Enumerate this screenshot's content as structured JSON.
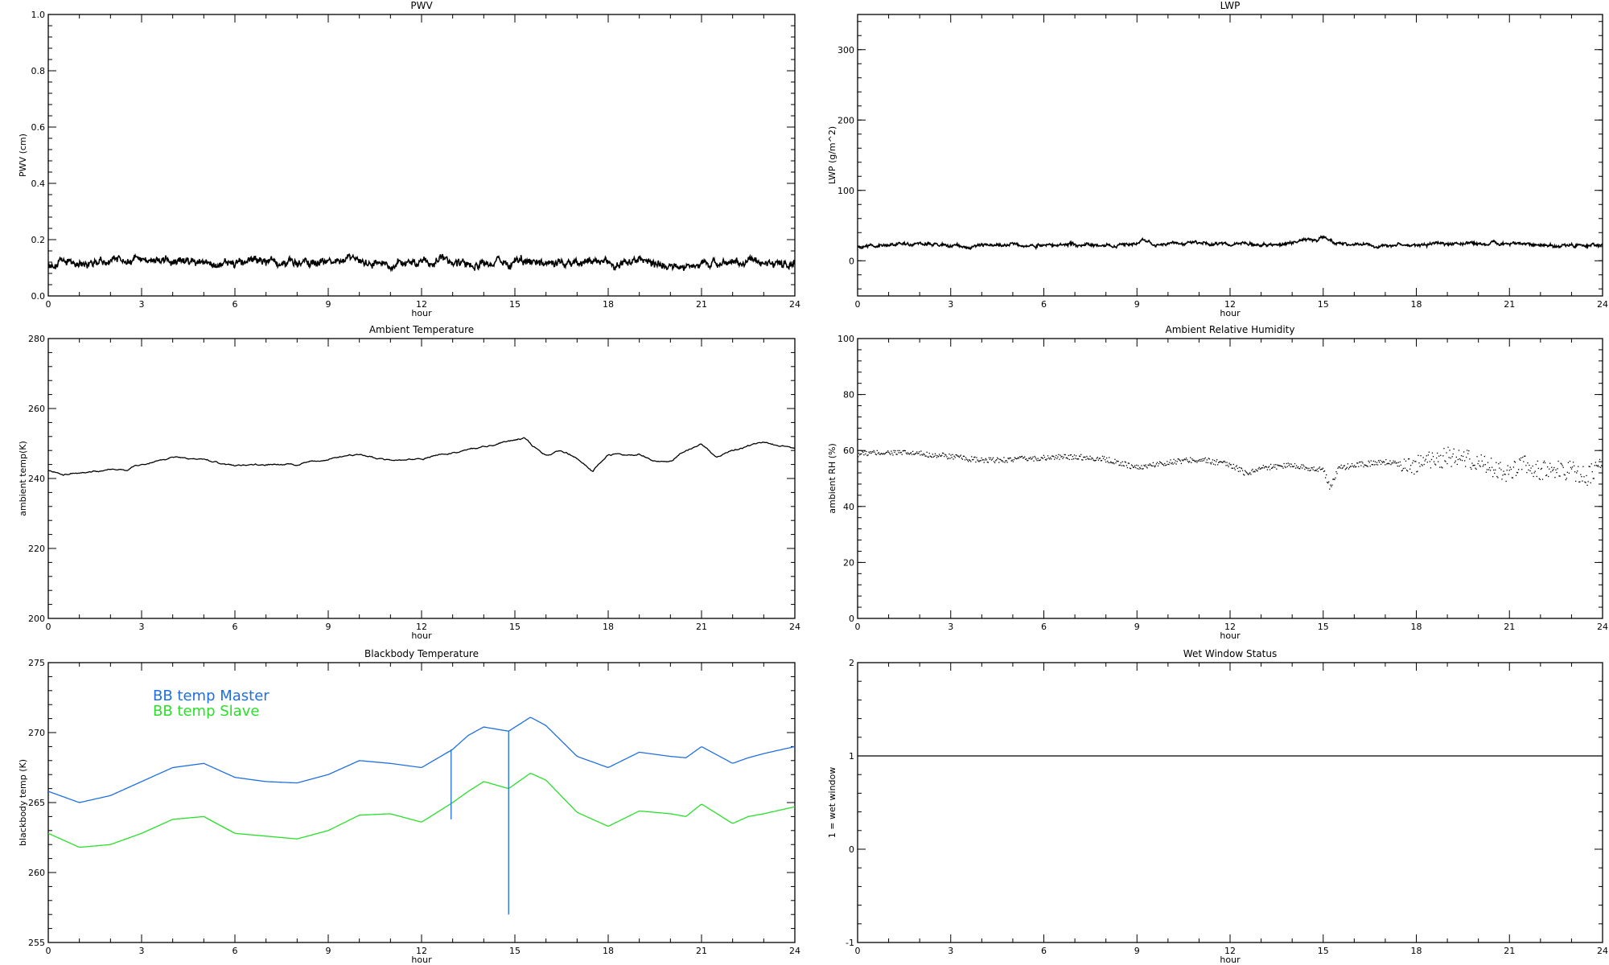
{
  "colors": {
    "master": "#1f6fe0",
    "slave": "#2adf2a",
    "default": "#000000"
  },
  "chart_data": [
    {
      "type": "line",
      "title": "PWV",
      "xlabel": "hour",
      "ylabel": "PWV (cm)",
      "xlim": [
        0,
        24
      ],
      "ylim": [
        0.0,
        1.0
      ],
      "xticks": [
        "0",
        "3",
        "6",
        "9",
        "12",
        "15",
        "18",
        "21",
        "24"
      ],
      "yticks": [
        "0.0",
        "0.2",
        "0.4",
        "0.6",
        "0.8",
        "1.0"
      ],
      "style": "noisy",
      "series": [
        {
          "color": "#000000",
          "noise": 0.012,
          "x": [
            0,
            1,
            2,
            3,
            4,
            5,
            6,
            7,
            8,
            9,
            10,
            11,
            12,
            13,
            14,
            15,
            16,
            17,
            18,
            19,
            20,
            21,
            22,
            23,
            24
          ],
          "y": [
            0.115,
            0.12,
            0.125,
            0.13,
            0.12,
            0.115,
            0.12,
            0.125,
            0.12,
            0.125,
            0.12,
            0.11,
            0.115,
            0.12,
            0.115,
            0.12,
            0.115,
            0.12,
            0.115,
            0.12,
            0.11,
            0.105,
            0.115,
            0.12,
            0.115
          ]
        }
      ]
    },
    {
      "type": "line",
      "title": "LWP",
      "xlabel": "hour",
      "ylabel": "LWP (g/m^2)",
      "xlim": [
        0,
        24
      ],
      "ylim": [
        -50,
        350
      ],
      "xticks": [
        "0",
        "3",
        "6",
        "9",
        "12",
        "15",
        "18",
        "21",
        "24"
      ],
      "yticks": [
        "0",
        "100",
        "200",
        "300"
      ],
      "style": "noisy",
      "series": [
        {
          "color": "#000000",
          "noise": 1.8,
          "x": [
            0,
            1,
            2,
            3,
            3.6,
            4,
            5,
            6,
            7,
            8,
            9,
            9.2,
            9.6,
            10,
            11,
            12,
            13,
            14,
            14.8,
            15,
            15.4,
            16,
            17,
            18,
            19,
            20,
            21,
            22,
            23,
            24
          ],
          "y": [
            21,
            23,
            24,
            22,
            19,
            22,
            23,
            22,
            23,
            22,
            24,
            30,
            22,
            25,
            25,
            24,
            23,
            25,
            30,
            33,
            24,
            23,
            22,
            22,
            24,
            24,
            25,
            22,
            22,
            22
          ]
        }
      ]
    },
    {
      "type": "line",
      "title": "Ambient Temperature",
      "xlabel": "hour",
      "ylabel": "ambient temp(K)",
      "xlim": [
        0,
        24
      ],
      "ylim": [
        200,
        280
      ],
      "xticks": [
        "0",
        "3",
        "6",
        "9",
        "12",
        "15",
        "18",
        "21",
        "24"
      ],
      "yticks": [
        "200",
        "220",
        "240",
        "260",
        "280"
      ],
      "style": "line",
      "series": [
        {
          "color": "#000000",
          "noise": 0.25,
          "x": [
            0,
            0.5,
            1,
            2,
            2.5,
            3,
            4,
            5,
            6,
            7,
            8,
            9,
            10,
            11,
            12,
            13,
            14,
            15,
            15.3,
            15.6,
            16,
            16.5,
            17,
            17.5,
            17.7,
            18,
            19,
            19.5,
            20,
            20.5,
            21,
            21.5,
            22,
            23,
            24
          ],
          "y": [
            242.5,
            241.3,
            241.5,
            242.8,
            242.3,
            244,
            246,
            245.3,
            243.5,
            244,
            244,
            245.5,
            247,
            245,
            245.5,
            247.5,
            249,
            251,
            251.5,
            249,
            246.5,
            248,
            246,
            242,
            244.5,
            247,
            247,
            245,
            245,
            248,
            250,
            246,
            248,
            250.5,
            248.5
          ]
        }
      ]
    },
    {
      "type": "scatter",
      "title": "Ambient Relative Humidity",
      "xlabel": "hour",
      "ylabel": "ambient RH (%)",
      "xlim": [
        0,
        24
      ],
      "ylim": [
        0,
        100
      ],
      "xticks": [
        "0",
        "3",
        "6",
        "9",
        "12",
        "15",
        "18",
        "21",
        "24"
      ],
      "yticks": [
        "0",
        "20",
        "40",
        "60",
        "80",
        "100"
      ],
      "style": "dots",
      "series": [
        {
          "color": "#000000",
          "noise": 1.0,
          "x": [
            0,
            1,
            2,
            3,
            4,
            5,
            6,
            7,
            8,
            9,
            10,
            11,
            12,
            12.5,
            13,
            14,
            15,
            15.2,
            15.5,
            16,
            17,
            18,
            19,
            20,
            21,
            21.5,
            22,
            23,
            23.5,
            24
          ],
          "y": [
            59,
            59.5,
            59,
            58,
            56.5,
            57,
            57.5,
            58,
            57,
            54,
            56,
            57,
            55,
            52,
            54,
            55,
            53,
            47,
            54,
            55,
            56,
            55,
            58,
            56,
            52,
            55,
            53,
            53,
            51,
            55
          ]
        }
      ]
    },
    {
      "type": "line",
      "title": "Blackbody Temperature",
      "xlabel": "hour",
      "ylabel": "blackbody temp (K)",
      "xlim": [
        0,
        24
      ],
      "ylim": [
        255,
        275
      ],
      "xticks": [
        "0",
        "3",
        "6",
        "9",
        "12",
        "15",
        "18",
        "21",
        "24"
      ],
      "yticks": [
        "255",
        "260",
        "265",
        "270",
        "275"
      ],
      "style": "line",
      "legend": [
        "BB temp Master",
        "BB temp Slave"
      ],
      "legend_position": "top-left",
      "series": [
        {
          "name": "BB temp Master",
          "color": "#1f6fe0",
          "noise": 0,
          "x": [
            0,
            1,
            2,
            3,
            4,
            5,
            6,
            7,
            8,
            9,
            10,
            11,
            12,
            13,
            13.5,
            14,
            14.8,
            15.5,
            16,
            17,
            18,
            19,
            20,
            20.5,
            21,
            21.5,
            22,
            22.5,
            23,
            24
          ],
          "y": [
            265.8,
            265.0,
            265.5,
            266.5,
            267.5,
            267.8,
            266.8,
            266.5,
            266.4,
            267.0,
            268.0,
            267.8,
            267.5,
            268.8,
            269.8,
            270.4,
            270.1,
            271.1,
            270.5,
            268.3,
            267.5,
            268.6,
            268.3,
            268.2,
            269.0,
            268.4,
            267.8,
            268.2,
            268.5,
            269.0
          ]
        },
        {
          "name": "BB temp Slave",
          "color": "#2adf2a",
          "noise": 0,
          "x": [
            0,
            1,
            2,
            3,
            4,
            5,
            6,
            7,
            8,
            9,
            10,
            11,
            12,
            13,
            13.5,
            14,
            14.8,
            15.5,
            16,
            17,
            18,
            19,
            20,
            20.5,
            21,
            21.5,
            22,
            22.5,
            23,
            24
          ],
          "y": [
            262.8,
            261.8,
            262.0,
            262.8,
            263.8,
            264.0,
            262.8,
            262.6,
            262.4,
            263.0,
            264.1,
            264.2,
            263.6,
            265.0,
            265.8,
            266.5,
            266.0,
            267.1,
            266.6,
            264.3,
            263.3,
            264.4,
            264.2,
            264.0,
            264.9,
            264.2,
            263.5,
            264.0,
            264.2,
            264.7
          ]
        }
      ],
      "spikes": [
        {
          "x": 12.95,
          "y_top": 268.8,
          "y_bottom": 263.8,
          "color": "#1f6fe0"
        },
        {
          "x": 14.8,
          "y_top": 270.1,
          "y_bottom": 257.0,
          "color": "#1f6fe0"
        }
      ]
    },
    {
      "type": "line",
      "title": "Wet Window Status",
      "xlabel": "hour",
      "ylabel": "1 = wet window",
      "xlim": [
        0,
        24
      ],
      "ylim": [
        -1,
        2
      ],
      "xticks": [
        "0",
        "3",
        "6",
        "9",
        "12",
        "15",
        "18",
        "21",
        "24"
      ],
      "yticks": [
        "-1",
        "0",
        "1",
        "2"
      ],
      "style": "line",
      "series": [
        {
          "color": "#000000",
          "noise": 0,
          "x": [
            0,
            24
          ],
          "y": [
            1,
            1
          ]
        }
      ]
    }
  ]
}
